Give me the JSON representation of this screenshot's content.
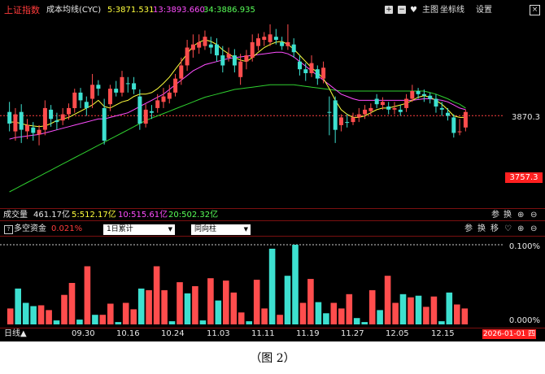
{
  "header": {
    "index_name": "上证指数",
    "indicator": "成本均线(CYC)",
    "ma5": "5:3871.531",
    "ma13": "13:3893.660",
    "ma34": "34:3886.935",
    "toolbar": {
      "plus": "+",
      "minus": "−",
      "main_chart": "主图",
      "axis": "坐标线",
      "settings": "设置",
      "close": "×"
    }
  },
  "price_axis": {
    "upper": "3870.3",
    "lower_badge": "3757.3"
  },
  "volume_bar": {
    "label": "成交量",
    "total": "461.17亿",
    "ma5": "5:512.17亿",
    "ma10": "10:515.61亿",
    "ma20": "20:502.32亿",
    "ctrl_param": "参",
    "ctrl_switch": "换"
  },
  "fund_panel": {
    "title": "多空资金",
    "value": "0.021%",
    "select_period": "1日累计",
    "select_type": "同向柱",
    "ctrl_param": "参",
    "ctrl_switch": "换",
    "ctrl_move": "移",
    "axis_top": "0.100%",
    "axis_bottom": "0.000%"
  },
  "x_axis": {
    "period": "日线",
    "ticks": [
      "09.30",
      "10.16",
      "10.24",
      "11.03",
      "11.11",
      "11.19",
      "11.27",
      "12.05",
      "12.15"
    ],
    "current_date": "2026-01-01 四"
  },
  "caption": "（图 2）",
  "colors": {
    "up": "#ff4d4d",
    "down": "#3de0d0",
    "ma5": "#ffff3c",
    "ma13": "#ff4dff",
    "ma34": "#2fd02f",
    "grid": "#7a1010"
  },
  "chart_data": {
    "type": "candlestick",
    "candles": [
      [
        3860,
        3875,
        3888,
        3850,
        "d"
      ],
      [
        3850,
        3872,
        3880,
        3838,
        "u"
      ],
      [
        3875,
        3852,
        3885,
        3835,
        "d"
      ],
      [
        3850,
        3858,
        3866,
        3840,
        "u"
      ],
      [
        3855,
        3848,
        3862,
        3838,
        "d"
      ],
      [
        3846,
        3852,
        3858,
        3832,
        "u"
      ],
      [
        3852,
        3880,
        3890,
        3845,
        "u"
      ],
      [
        3878,
        3866,
        3884,
        3856,
        "d"
      ],
      [
        3864,
        3862,
        3874,
        3852,
        "d"
      ],
      [
        3864,
        3872,
        3880,
        3858,
        "u"
      ],
      [
        3872,
        3880,
        3886,
        3865,
        "u"
      ],
      [
        3880,
        3900,
        3905,
        3874,
        "u"
      ],
      [
        3900,
        3890,
        3906,
        3880,
        "d"
      ],
      [
        3888,
        3880,
        3895,
        3870,
        "d"
      ],
      [
        3892,
        3910,
        3924,
        3880,
        "u"
      ],
      [
        3910,
        3905,
        3916,
        3896,
        "d"
      ],
      [
        3880,
        3838,
        3892,
        3833,
        "d"
      ],
      [
        3885,
        3905,
        3910,
        3876,
        "u"
      ],
      [
        3905,
        3900,
        3915,
        3895,
        "d"
      ],
      [
        3900,
        3920,
        3928,
        3895,
        "u"
      ],
      [
        3912,
        3912,
        3920,
        3900,
        "d"
      ],
      [
        3912,
        3904,
        3920,
        3898,
        "d"
      ],
      [
        3895,
        3860,
        3904,
        3852,
        "d"
      ],
      [
        3860,
        3878,
        3885,
        3855,
        "u"
      ],
      [
        3876,
        3874,
        3884,
        3866,
        "d"
      ],
      [
        3880,
        3890,
        3898,
        3874,
        "u"
      ],
      [
        3888,
        3895,
        3906,
        3880,
        "u"
      ],
      [
        3892,
        3900,
        3910,
        3886,
        "u"
      ],
      [
        3900,
        3918,
        3924,
        3895,
        "u"
      ],
      [
        3918,
        3935,
        3945,
        3910,
        "u"
      ],
      [
        3935,
        3958,
        3968,
        3928,
        "u"
      ],
      [
        3955,
        3962,
        3975,
        3945,
        "u"
      ],
      [
        3958,
        3965,
        3975,
        3950,
        "u"
      ],
      [
        3960,
        3972,
        3980,
        3955,
        "u"
      ],
      [
        3958,
        3962,
        3972,
        3950,
        "d"
      ],
      [
        3962,
        3948,
        3970,
        3940,
        "d"
      ],
      [
        3948,
        3935,
        3960,
        3926,
        "d"
      ],
      [
        3945,
        3950,
        3958,
        3940,
        "u"
      ],
      [
        3948,
        3935,
        3956,
        3926,
        "d"
      ],
      [
        3920,
        3940,
        3950,
        3910,
        "u"
      ],
      [
        3940,
        3948,
        3955,
        3930,
        "u"
      ],
      [
        3945,
        3965,
        3975,
        3940,
        "u"
      ],
      [
        3960,
        3970,
        3976,
        3954,
        "u"
      ],
      [
        3968,
        3972,
        3978,
        3960,
        "u"
      ],
      [
        3965,
        3975,
        3988,
        3960,
        "u"
      ],
      [
        3972,
        3968,
        3982,
        3962,
        "d"
      ],
      [
        3965,
        3960,
        3972,
        3955,
        "d"
      ],
      [
        3960,
        3965,
        3988,
        3955,
        "u"
      ],
      [
        3962,
        3952,
        3970,
        3945,
        "d"
      ],
      [
        3940,
        3930,
        3948,
        3922,
        "d"
      ],
      [
        3930,
        3925,
        3938,
        3915,
        "d"
      ],
      [
        3925,
        3938,
        3948,
        3920,
        "u"
      ],
      [
        3930,
        3918,
        3935,
        3910,
        "d"
      ],
      [
        3918,
        3932,
        3940,
        3912,
        "u"
      ],
      [
        3875,
        3875,
        3895,
        3845,
        "d"
      ],
      [
        3890,
        3852,
        3895,
        3835,
        "d"
      ],
      [
        3858,
        3868,
        3872,
        3850,
        "u"
      ],
      [
        3862,
        3862,
        3872,
        3855,
        "d"
      ],
      [
        3862,
        3868,
        3874,
        3858,
        "u"
      ],
      [
        3868,
        3872,
        3880,
        3862,
        "u"
      ],
      [
        3872,
        3878,
        3884,
        3866,
        "u"
      ],
      [
        3876,
        3880,
        3886,
        3870,
        "u"
      ],
      [
        3892,
        3885,
        3898,
        3880,
        "d"
      ],
      [
        3884,
        3888,
        3894,
        3878,
        "u"
      ],
      [
        3882,
        3878,
        3888,
        3872,
        "d"
      ],
      [
        3878,
        3880,
        3888,
        3872,
        "u"
      ],
      [
        3878,
        3875,
        3884,
        3870,
        "d"
      ],
      [
        3880,
        3892,
        3898,
        3875,
        "u"
      ],
      [
        3892,
        3902,
        3910,
        3888,
        "u"
      ],
      [
        3898,
        3902,
        3906,
        3892,
        "d"
      ],
      [
        3898,
        3896,
        3904,
        3888,
        "d"
      ],
      [
        3896,
        3892,
        3900,
        3886,
        "d"
      ],
      [
        3892,
        3882,
        3898,
        3874,
        "d"
      ],
      [
        3880,
        3878,
        3888,
        3870,
        "d"
      ],
      [
        3874,
        3870,
        3880,
        3864,
        "d"
      ],
      [
        3868,
        3848,
        3872,
        3842,
        "d"
      ],
      [
        3850,
        3850,
        3866,
        3845,
        "u"
      ],
      [
        3855,
        3875,
        3878,
        3850,
        "u"
      ]
    ],
    "ma5": [
      3862,
      3862,
      3860,
      3858,
      3857,
      3856,
      3857,
      3860,
      3864,
      3866,
      3868,
      3872,
      3876,
      3880,
      3884,
      3890,
      3882,
      3880,
      3884,
      3888,
      3890,
      3895,
      3898,
      3898,
      3900,
      3905,
      3912,
      3920,
      3930,
      3940,
      3950,
      3960,
      3965,
      3968,
      3966,
      3962,
      3955,
      3950,
      3945,
      3942,
      3940,
      3945,
      3952,
      3958,
      3962,
      3965,
      3966,
      3962,
      3956,
      3948,
      3940,
      3932,
      3926,
      3918,
      3905,
      3890,
      3878,
      3872,
      3868,
      3868,
      3870,
      3874,
      3878,
      3880,
      3880,
      3882,
      3884,
      3886,
      3890,
      3894,
      3896,
      3894,
      3890,
      3885,
      3878,
      3870,
      3868,
      3868
    ],
    "ma13": [
      3840,
      3842,
      3843,
      3844,
      3845,
      3846,
      3848,
      3850,
      3852,
      3854,
      3856,
      3858,
      3860,
      3862,
      3864,
      3866,
      3866,
      3868,
      3870,
      3872,
      3874,
      3878,
      3882,
      3886,
      3890,
      3894,
      3898,
      3904,
      3910,
      3916,
      3922,
      3928,
      3932,
      3936,
      3938,
      3940,
      3942,
      3944,
      3945,
      3946,
      3947,
      3948,
      3949,
      3950,
      3951,
      3952,
      3952,
      3950,
      3946,
      3940,
      3934,
      3928,
      3922,
      3916,
      3910,
      3904,
      3898,
      3895,
      3892,
      3890,
      3890,
      3890,
      3890,
      3890,
      3890,
      3890,
      3890,
      3890,
      3890,
      3891,
      3892,
      3892,
      3891,
      3890,
      3888,
      3884,
      3880,
      3878
    ],
    "ma34": [
      3772,
      3776,
      3780,
      3784,
      3788,
      3792,
      3796,
      3800,
      3804,
      3808,
      3812,
      3816,
      3820,
      3824,
      3828,
      3832,
      3836,
      3840,
      3844,
      3848,
      3852,
      3856,
      3860,
      3864,
      3867,
      3870,
      3873,
      3876,
      3879,
      3882,
      3885,
      3888,
      3891,
      3894,
      3896,
      3898,
      3900,
      3902,
      3904,
      3905,
      3906,
      3907,
      3908,
      3909,
      3910,
      3910,
      3910,
      3910,
      3910,
      3909,
      3908,
      3907,
      3906,
      3905,
      3904,
      3903,
      3902,
      3902,
      3902,
      3902,
      3902,
      3902,
      3902,
      3902,
      3902,
      3902,
      3902,
      3902,
      3902,
      3902,
      3902,
      3900,
      3898,
      3895,
      3892,
      3888,
      3885,
      3880
    ],
    "price_range": [
      3757.3,
      3990
    ],
    "reference_line": 3870.3,
    "fund_bars": [
      [
        0.2,
        "r"
      ],
      [
        0.45,
        "c"
      ],
      [
        0.27,
        "c"
      ],
      [
        0.23,
        "c"
      ],
      [
        0.24,
        "r"
      ],
      [
        0.18,
        "r"
      ],
      [
        0.05,
        "c"
      ],
      [
        0.37,
        "r"
      ],
      [
        0.52,
        "r"
      ],
      [
        0.06,
        "c"
      ],
      [
        0.73,
        "r"
      ],
      [
        0.12,
        "c"
      ],
      [
        0.12,
        "r"
      ],
      [
        0.26,
        "r"
      ],
      [
        0.03,
        "c"
      ],
      [
        0.27,
        "r"
      ],
      [
        0.19,
        "r"
      ],
      [
        0.45,
        "c"
      ],
      [
        0.43,
        "r"
      ],
      [
        0.73,
        "r"
      ],
      [
        0.43,
        "r"
      ],
      [
        0.04,
        "c"
      ],
      [
        0.53,
        "r"
      ],
      [
        0.39,
        "c"
      ],
      [
        0.48,
        "r"
      ],
      [
        0.05,
        "c"
      ],
      [
        0.58,
        "r"
      ],
      [
        0.3,
        "c"
      ],
      [
        0.55,
        "r"
      ],
      [
        0.4,
        "r"
      ],
      [
        0.15,
        "r"
      ],
      [
        0.04,
        "c"
      ],
      [
        0.56,
        "r"
      ],
      [
        0.2,
        "r"
      ],
      [
        0.95,
        "c"
      ],
      [
        0.12,
        "r"
      ],
      [
        0.61,
        "c"
      ],
      [
        1.0,
        "c"
      ],
      [
        0.27,
        "r"
      ],
      [
        0.57,
        "r"
      ],
      [
        0.28,
        "c"
      ],
      [
        0.14,
        "c"
      ],
      [
        0.27,
        "r"
      ],
      [
        0.2,
        "r"
      ],
      [
        0.38,
        "r"
      ],
      [
        0.08,
        "c"
      ],
      [
        0.03,
        "c"
      ],
      [
        0.43,
        "r"
      ],
      [
        0.18,
        "c"
      ],
      [
        0.61,
        "r"
      ],
      [
        0.27,
        "r"
      ],
      [
        0.38,
        "c"
      ],
      [
        0.34,
        "r"
      ],
      [
        0.36,
        "c"
      ],
      [
        0.22,
        "r"
      ],
      [
        0.35,
        "r"
      ],
      [
        0.04,
        "c"
      ],
      [
        0.4,
        "c"
      ],
      [
        0.25,
        "r"
      ],
      [
        0.2,
        "r"
      ]
    ],
    "fund_axis": [
      "0.000%",
      "0.100%"
    ]
  }
}
